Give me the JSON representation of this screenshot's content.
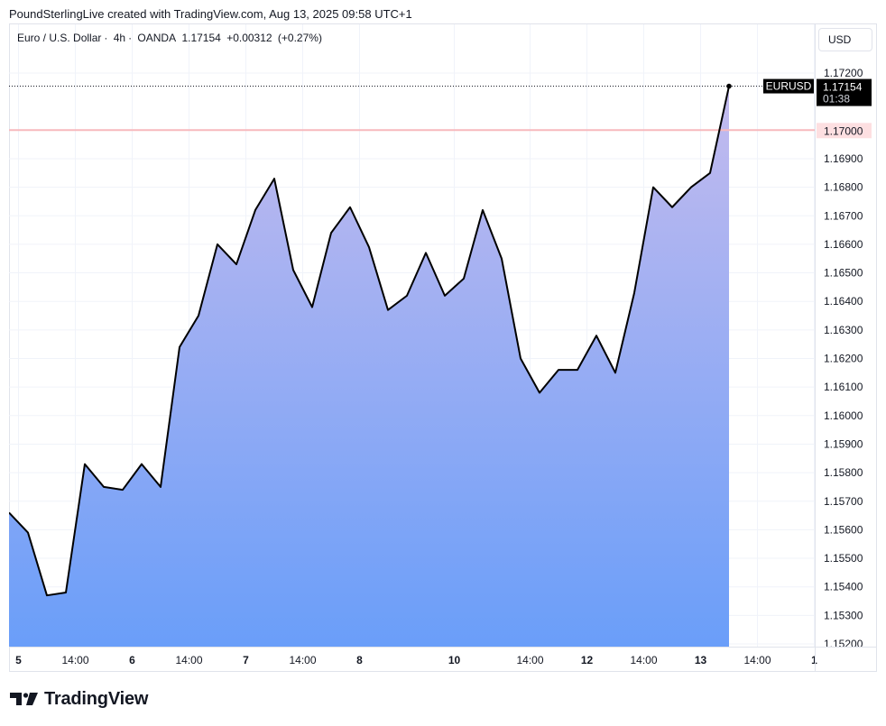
{
  "header": {
    "created_by": "PoundSterlingLive created with TradingView.com, Aug 13, 2025 09:58 UTC+1"
  },
  "legend": {
    "symbol_name": "Euro / U.S. Dollar",
    "interval": "4h",
    "exchange": "OANDA",
    "last_price": "1.17154",
    "change": "+0.00312",
    "change_pct": "(+0.27%)"
  },
  "currency_button": "USD",
  "price_label": {
    "symbol": "EURUSD",
    "price": "1.17154",
    "countdown": "01:38"
  },
  "horizontal_line": {
    "value": 1.17,
    "label": "1.17000",
    "color": "#f7b9bd"
  },
  "logo": {
    "text": "TradingView",
    "icon": "tradingview-logo-icon"
  },
  "colors": {
    "line": "#000000",
    "area_top": "#c4bbee",
    "area_bottom": "#6a9ef9",
    "grid": "#f0f3fa",
    "label_bg": "#000000",
    "hline_label_bg": "#fddfe1"
  },
  "chart_data": {
    "type": "area",
    "title": "Euro / U.S. Dollar · 4h · OANDA",
    "ylim": [
      1.152,
      1.1731
    ],
    "y_ticks": [
      "1.15200",
      "1.15300",
      "1.15400",
      "1.15500",
      "1.15600",
      "1.15700",
      "1.15800",
      "1.15900",
      "1.16000",
      "1.16100",
      "1.16200",
      "1.16300",
      "1.16400",
      "1.16500",
      "1.16600",
      "1.16700",
      "1.16800",
      "1.16900",
      "1.17200"
    ],
    "x_ticks": [
      {
        "label": "5",
        "index": 0.5,
        "bold": true
      },
      {
        "label": "14:00",
        "index": 3.5,
        "bold": false
      },
      {
        "label": "6",
        "index": 6.5,
        "bold": true
      },
      {
        "label": "14:00",
        "index": 9.5,
        "bold": false
      },
      {
        "label": "7",
        "index": 12.5,
        "bold": true
      },
      {
        "label": "14:00",
        "index": 15.5,
        "bold": false
      },
      {
        "label": "8",
        "index": 18.5,
        "bold": true
      },
      {
        "label": "10",
        "index": 23.5,
        "bold": true
      },
      {
        "label": "14:00",
        "index": 27.5,
        "bold": false
      },
      {
        "label": "12",
        "index": 30.5,
        "bold": true
      },
      {
        "label": "14:00",
        "index": 33.5,
        "bold": false
      },
      {
        "label": "13",
        "index": 36.5,
        "bold": true
      },
      {
        "label": "14:00",
        "index": 39.5,
        "bold": false
      },
      {
        "label": "1",
        "index": 42.5,
        "bold": true
      }
    ],
    "series": [
      {
        "values": [
          1.1566,
          1.1559,
          1.1537,
          1.1538,
          1.1583,
          1.1575,
          1.1574,
          1.1583,
          1.1575,
          1.1624,
          1.1635,
          1.166,
          1.1653,
          1.1672,
          1.1683,
          1.1651,
          1.1638,
          1.1664,
          1.1673,
          1.1659,
          1.1637,
          1.1642,
          1.1657,
          1.1642,
          1.1648,
          1.1672,
          1.1655,
          1.162,
          1.1608,
          1.1616,
          1.1616,
          1.1628,
          1.1615,
          1.1643,
          1.168,
          1.1673,
          1.168,
          1.1685,
          1.17154
        ]
      }
    ]
  }
}
